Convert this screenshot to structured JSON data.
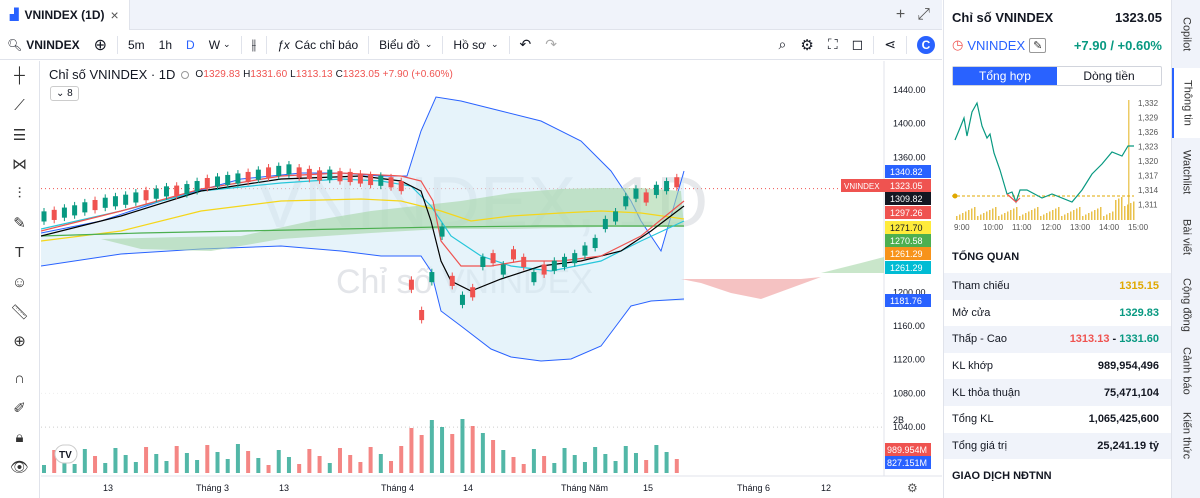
{
  "tab": {
    "title": "VNINDEX (1D)",
    "close": "×",
    "add": "+",
    "expand": "⤢"
  },
  "toolbar": {
    "symbol": "VNINDEX",
    "intervals": [
      "5m",
      "1h",
      "D",
      "W"
    ],
    "active_interval": "D",
    "indicators": "Các chỉ báo",
    "chart_type": "Biểu đồ",
    "profile": "Hồ sơ"
  },
  "legend": {
    "title": "Chỉ số VNINDEX · 1D",
    "open": "O",
    "open_v": "1329.83",
    "high": "H",
    "high_v": "1331.60",
    "low": "L",
    "low_v": "1313.13",
    "close": "C",
    "close_v": "1323.05",
    "change": "+7.90 (+0.60%)",
    "collapsed_count": "8"
  },
  "watermark": {
    "main": "VNINDEX, 1D",
    "sub": "Chỉ số VNINDEX"
  },
  "chart_data": {
    "type": "candlestick",
    "price_axis": [
      "1440.00",
      "1400.00",
      "1360.00",
      "1200.00",
      "1160.00",
      "1120.00",
      "1080.00",
      "1040.00"
    ],
    "price_tags": [
      {
        "v": "1340.82",
        "c": "#2962ff"
      },
      {
        "v": "1323.05",
        "c": "#ef5350"
      },
      {
        "v": "1309.82",
        "c": "#131722"
      },
      {
        "v": "1297.26",
        "c": "#ef5350"
      },
      {
        "v": "1271.70",
        "c": "#ffeb3b"
      },
      {
        "v": "1270.58",
        "c": "#4caf50"
      },
      {
        "v": "1261.29",
        "c": "#f7931a"
      },
      {
        "v": "1261.29",
        "c": "#00bcd4"
      },
      {
        "v": "1181.76",
        "c": "#2962ff"
      }
    ],
    "symbol_tag": "VNINDEX",
    "volume_tags": [
      {
        "v": "989.954M",
        "c": "#ef5350"
      },
      {
        "v": "827.151M",
        "c": "#2962ff"
      }
    ],
    "volume_axis_top": "2B",
    "time_axis": [
      "13",
      "Tháng 3",
      "13",
      "Tháng 4",
      "14",
      "Tháng Năm",
      "15",
      "Tháng 6",
      "12"
    ]
  },
  "panel": {
    "title": "Chỉ số VNINDEX",
    "price": "1323.05",
    "symbol": "VNINDEX",
    "change": "+7.90 / +0.60%",
    "tabs": [
      "Tổng hợp",
      "Dòng tiền"
    ],
    "mini_y": [
      "1,332",
      "1,329",
      "1,326",
      "1,323",
      "1,320",
      "1,317",
      "1,314",
      "1,311"
    ],
    "mini_x": [
      "9:00",
      "10:00",
      "11:00",
      "12:00",
      "13:00",
      "14:00",
      "15:00"
    ],
    "overview": "TỔNG QUAN",
    "rows": [
      {
        "label": "Tham chiếu",
        "value": "1315.15",
        "color": "#e0a800"
      },
      {
        "label": "Mở cửa",
        "value": "1329.83",
        "color": "#089981"
      },
      {
        "label": "Thấp - Cao",
        "value": "",
        "color": "#131722"
      },
      {
        "label": "KL khớp",
        "value": "989,954,496",
        "color": "#131722"
      },
      {
        "label": "KL thỏa thuận",
        "value": "75,471,104",
        "color": "#131722"
      },
      {
        "label": "Tổng KL",
        "value": "1,065,425,600",
        "color": "#131722"
      },
      {
        "label": "Tổng giá trị",
        "value": "25,241.19 tỷ",
        "color": "#131722"
      }
    ],
    "low": "1313.13",
    "high": "1331.60",
    "range_sep": " - ",
    "foreign": "GIAO DỊCH NĐTNN"
  },
  "sidetabs": [
    "Copilot",
    "Thông tin",
    "Watchlist",
    "Bài viết",
    "Cộng đồng",
    "Cảnh báo",
    "Kiến thức"
  ]
}
